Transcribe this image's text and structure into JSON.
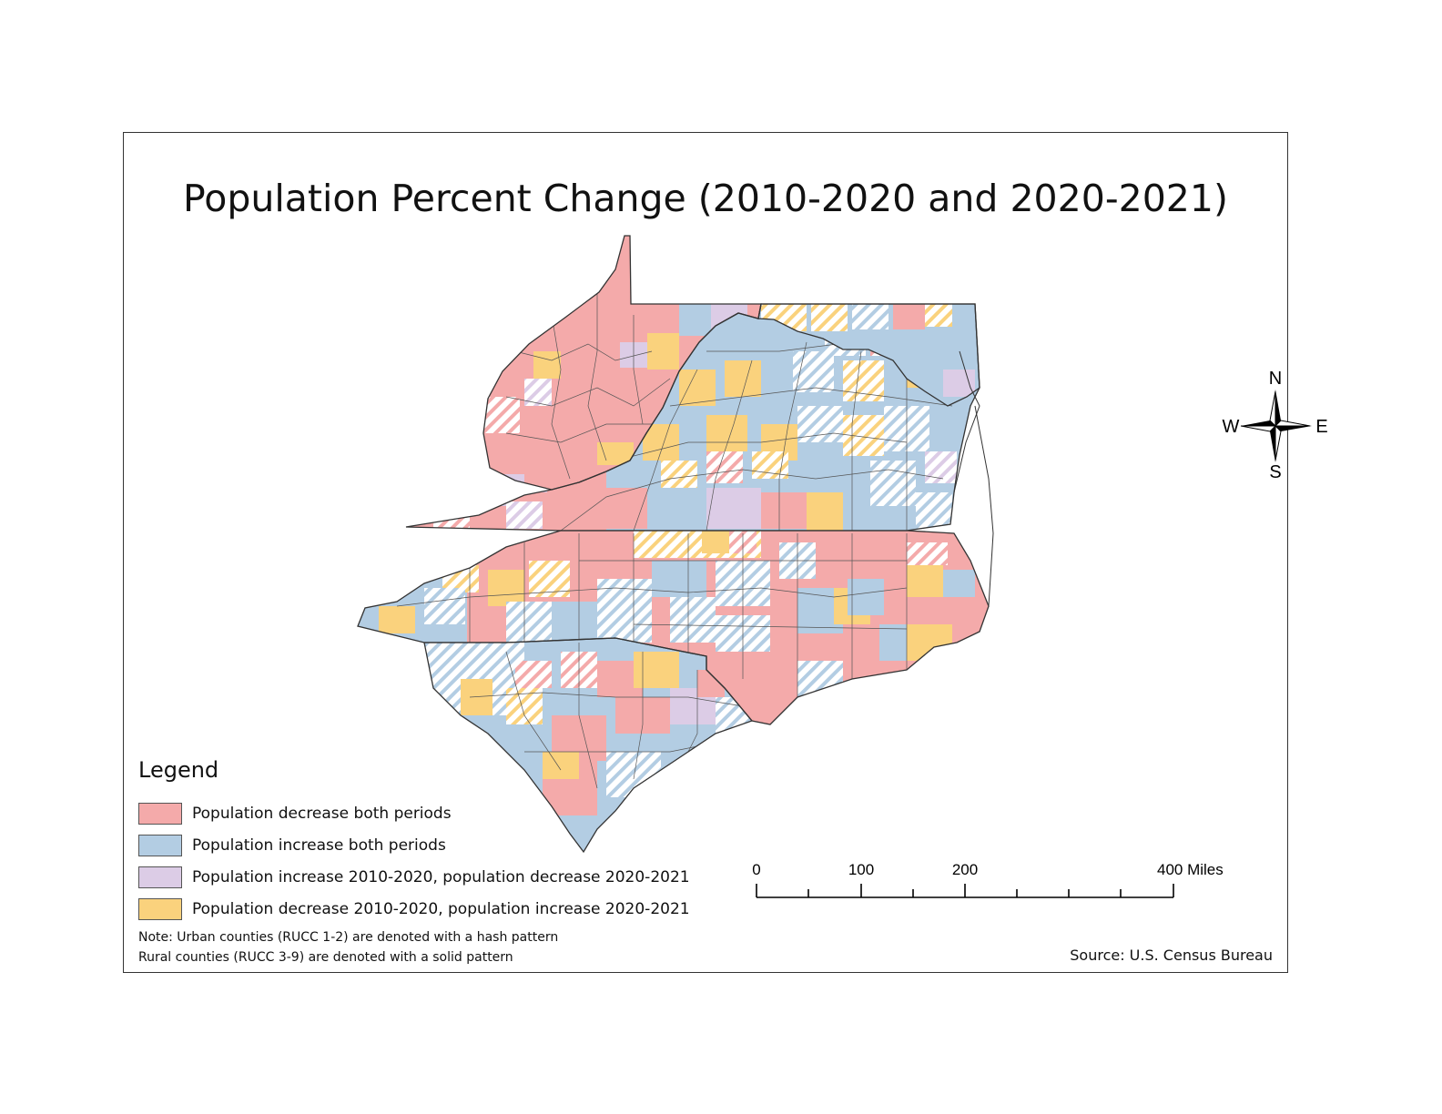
{
  "title": "Population Percent Change (2010-2020 and 2020-2021)",
  "compass": {
    "north": "N",
    "south": "S",
    "east": "E",
    "west": "W"
  },
  "legend": {
    "title": "Legend",
    "items": [
      {
        "label": "Population decrease both periods",
        "color": "#F4AAAA"
      },
      {
        "label": "Population increase both periods",
        "color": "#B3CDE3"
      },
      {
        "label": "Population increase 2010-2020, population decrease 2020-2021",
        "color": "#DCCCE6"
      },
      {
        "label": "Population decrease 2010-2020, population increase 2020-2021",
        "color": "#FAD27D"
      }
    ]
  },
  "note": {
    "line1": "Note: Urban counties (RUCC 1-2) are denoted with a hash pattern",
    "line2": "Rural counties (RUCC 3-9) are denoted with a solid pattern"
  },
  "source": "Source: U.S. Census Bureau",
  "scale_bar": {
    "labels": [
      "0",
      "100",
      "200",
      "400 Miles"
    ]
  }
}
